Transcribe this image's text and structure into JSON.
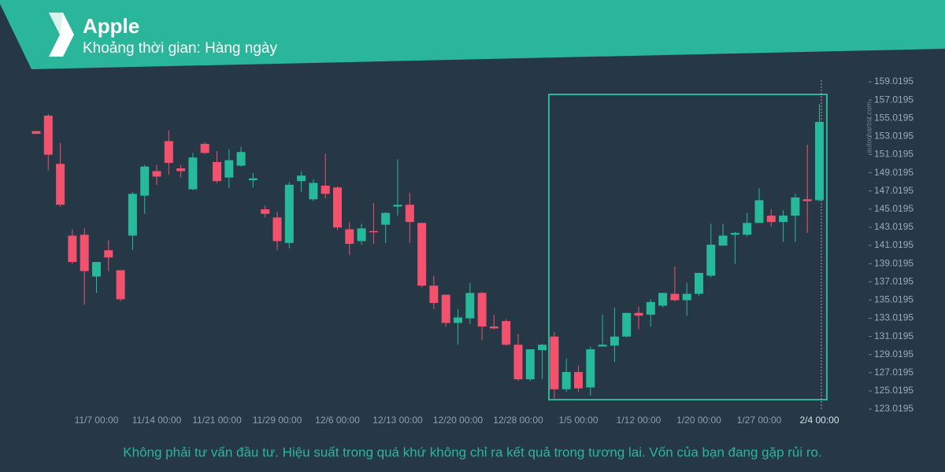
{
  "chart_data": {
    "type": "candlestick",
    "title": "Apple",
    "subtitle": "Khoảng thời gian: Hàng ngày",
    "watermark": "autochartist.com",
    "footer": "Không phải tư vấn đầu tư. Hiệu suất trong quá khứ không chỉ ra kết quả trong tương lai. Vốn của bạn đang gặp rủi ro.",
    "up_color": "#26b99a",
    "down_color": "#f2526e",
    "categories": [
      null,
      null,
      null,
      null,
      null,
      "11/7 00:00",
      null,
      null,
      null,
      null,
      "11/14 00:00",
      null,
      null,
      null,
      null,
      "11/21 00:00",
      null,
      null,
      null,
      null,
      "11/29 00:00",
      null,
      null,
      null,
      null,
      "12/6 00:00",
      null,
      null,
      null,
      null,
      "12/13 00:00",
      null,
      null,
      null,
      null,
      "12/20 00:00",
      null,
      null,
      null,
      null,
      "12/28 00:00",
      null,
      null,
      null,
      null,
      "1/5 00:00",
      null,
      null,
      null,
      null,
      "1/12 00:00",
      null,
      null,
      null,
      null,
      "1/20 00:00",
      null,
      null,
      null,
      null,
      "1/27 00:00",
      null,
      null,
      null,
      null,
      "2/4 00:00"
    ],
    "open": [
      153.6,
      155.3,
      150.0,
      142.1,
      142.2,
      137.6,
      140.5,
      138.3,
      142.1,
      146.5,
      149.2,
      152.5,
      149.5,
      147.2,
      152.2,
      150.2,
      148.5,
      149.8,
      148.2,
      145.0,
      144.1,
      141.3,
      148.1,
      146.1,
      147.6,
      147.4,
      142.8,
      141.5,
      142.6,
      143.3,
      145.3,
      145.5,
      143.5,
      136.6,
      135.6,
      132.5,
      133.0,
      135.8,
      132.1,
      132.7,
      130.1,
      126.3,
      129.5,
      131.0,
      125.2,
      127.1,
      125.4,
      129.9,
      130.0,
      131.0,
      133.6,
      133.4,
      134.4,
      135.7,
      135.0,
      135.7,
      137.7,
      141.0,
      142.2,
      142.2,
      143.5,
      144.3,
      143.6,
      144.3,
      146.1,
      146.0
    ],
    "high": [
      153.6,
      155.5,
      152.3,
      142.8,
      142.9,
      139.2,
      141.6,
      138.3,
      146.9,
      149.9,
      149.9,
      153.7,
      149.9,
      151.2,
      152.4,
      151.4,
      151.6,
      151.9,
      149.0,
      145.4,
      144.7,
      148.0,
      149.2,
      148.3,
      151.1,
      147.5,
      143.6,
      143.4,
      145.7,
      144.7,
      150.5,
      146.8,
      143.5,
      137.7,
      135.6,
      134.0,
      136.9,
      135.9,
      133.4,
      132.9,
      131.3,
      129.6,
      130.2,
      131.5,
      128.6,
      127.8,
      129.9,
      133.4,
      134.2,
      133.6,
      134.3,
      135.1,
      135.8,
      138.7,
      136.9,
      138.0,
      143.4,
      143.4,
      142.5,
      144.6,
      147.3,
      145.0,
      144.9,
      146.7,
      152.1,
      156.6
    ],
    "low": [
      153.3,
      149.3,
      145.3,
      139.0,
      134.5,
      135.8,
      138.2,
      134.9,
      140.5,
      144.5,
      147.7,
      148.8,
      148.5,
      147.1,
      151.1,
      147.9,
      147.3,
      149.7,
      147.4,
      144.1,
      140.5,
      140.7,
      146.9,
      145.9,
      146.2,
      142.7,
      140.0,
      141.1,
      141.2,
      141.3,
      144.3,
      141.3,
      136.4,
      134.0,
      132.1,
      130.1,
      132.4,
      130.6,
      131.8,
      130.0,
      126.1,
      126.1,
      126.3,
      124.2,
      124.9,
      124.9,
      124.5,
      129.9,
      128.2,
      130.9,
      131.8,
      132.1,
      134.2,
      134.9,
      133.3,
      135.5,
      137.5,
      141.0,
      139.0,
      142.0,
      143.5,
      143.1,
      141.4,
      141.4,
      142.4,
      145.9
    ],
    "close": [
      153.3,
      151.0,
      145.5,
      139.2,
      138.2,
      139.2,
      139.7,
      135.1,
      146.7,
      149.7,
      148.6,
      150.1,
      149.2,
      150.7,
      151.2,
      148.1,
      150.4,
      151.3,
      148.4,
      144.5,
      141.5,
      147.7,
      148.7,
      147.9,
      146.7,
      143.0,
      141.2,
      142.9,
      142.5,
      144.6,
      145.5,
      143.6,
      136.6,
      134.7,
      132.5,
      133.1,
      135.8,
      132.1,
      131.9,
      130.1,
      126.3,
      129.6,
      130.1,
      125.2,
      127.1,
      125.3,
      129.6,
      130.1,
      131.0,
      133.6,
      133.3,
      134.8,
      135.8,
      135.0,
      135.7,
      138.0,
      141.1,
      142.1,
      142.4,
      143.5,
      146.0,
      143.6,
      144.3,
      146.3,
      145.9,
      154.6
    ],
    "ylim": [
      122.33,
      159.37
    ],
    "yticks": [
      123.0195,
      125.0195,
      127.0195,
      129.0195,
      131.0195,
      133.0195,
      135.0195,
      137.0195,
      139.0195,
      141.0195,
      143.0195,
      145.0195,
      147.0195,
      149.0195,
      151.0195,
      153.0195,
      155.0195,
      157.0195,
      159.0195
    ]
  }
}
